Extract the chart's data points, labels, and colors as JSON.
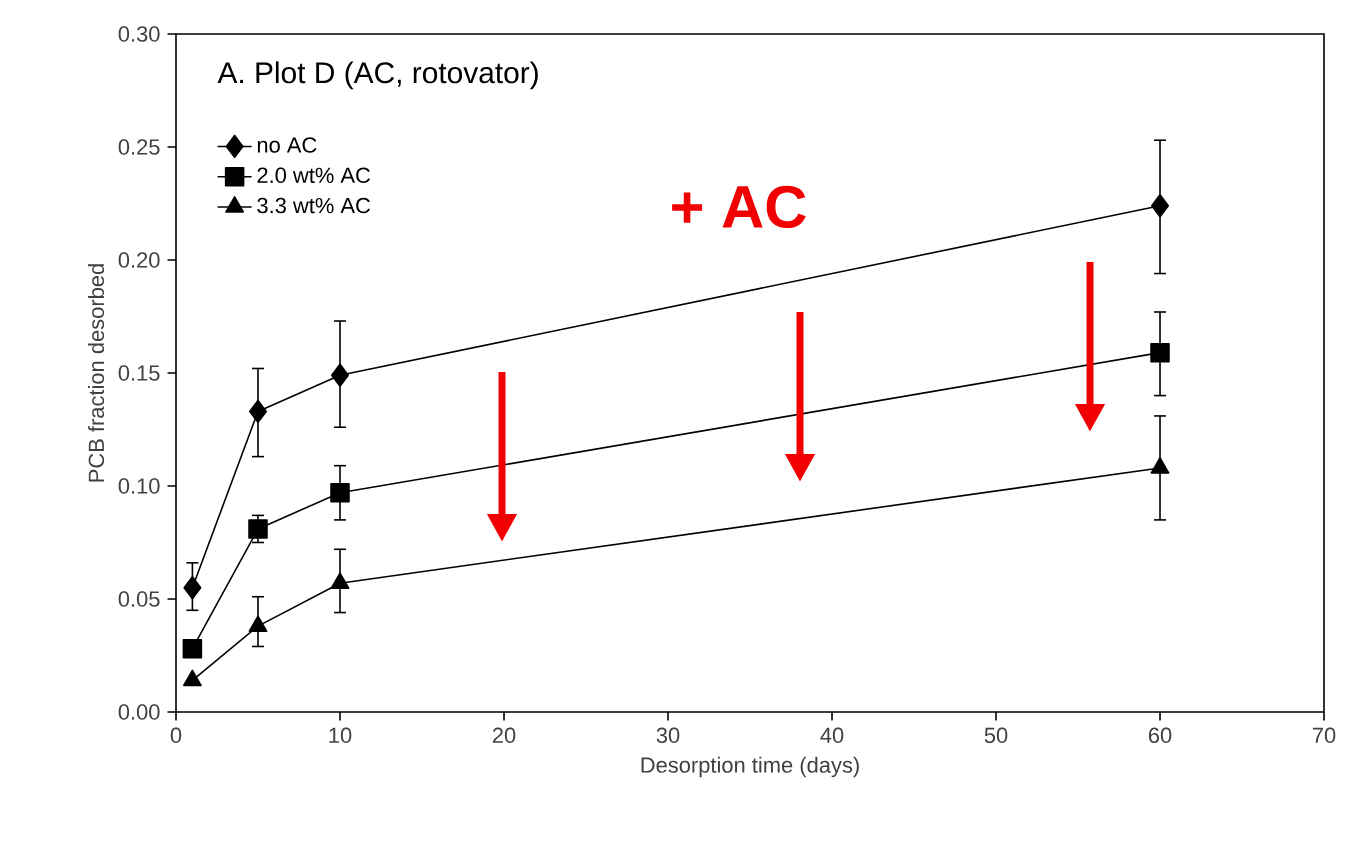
{
  "chart_data": {
    "type": "line",
    "title": "A. Plot D (AC, rotovator)",
    "xlabel": "Desorption time (days)",
    "ylabel": "PCB fraction desorbed",
    "annotations": [
      "+ AC"
    ],
    "x": [
      1,
      5,
      10,
      60
    ],
    "series": [
      {
        "name": "no AC",
        "color": "#000000",
        "marker": "diamond",
        "values": [
          0.055,
          0.133,
          0.149,
          0.224
        ],
        "errors": [
          [
            0.045,
            0.066
          ],
          [
            0.113,
            0.152
          ],
          [
            0.126,
            0.173
          ],
          [
            0.194,
            0.253
          ]
        ]
      },
      {
        "name": "2.0 wt% AC",
        "color": "#000000",
        "marker": "square",
        "values": [
          0.028,
          0.081,
          0.097,
          0.159
        ],
        "errors": [
          null,
          [
            0.075,
            0.087
          ],
          [
            0.085,
            0.109
          ],
          [
            0.14,
            0.177
          ]
        ]
      },
      {
        "name": "3.3 wt% AC",
        "color": "#000000",
        "marker": "triangle",
        "values": [
          0.014,
          0.038,
          0.057,
          0.108
        ],
        "errors": [
          null,
          [
            0.029,
            0.051
          ],
          [
            0.044,
            0.072
          ],
          [
            0.085,
            0.131
          ]
        ]
      }
    ],
    "xlim": [
      0,
      70
    ],
    "xticks": [
      0,
      10,
      20,
      30,
      40,
      50,
      60,
      70
    ],
    "ylim": [
      0,
      0.3
    ],
    "yticks": [
      {
        "value": 0,
        "label": "0.00"
      },
      {
        "value": 0.05,
        "label": "0.05"
      },
      {
        "value": 0.1,
        "label": "0.10"
      },
      {
        "value": 0.15,
        "label": "0.15"
      },
      {
        "value": 0.2,
        "label": "0.20"
      },
      {
        "value": 0.25,
        "label": "0.25"
      },
      {
        "value": 0.3,
        "label": "0.30"
      }
    ],
    "legend": "top left",
    "grid": false
  }
}
